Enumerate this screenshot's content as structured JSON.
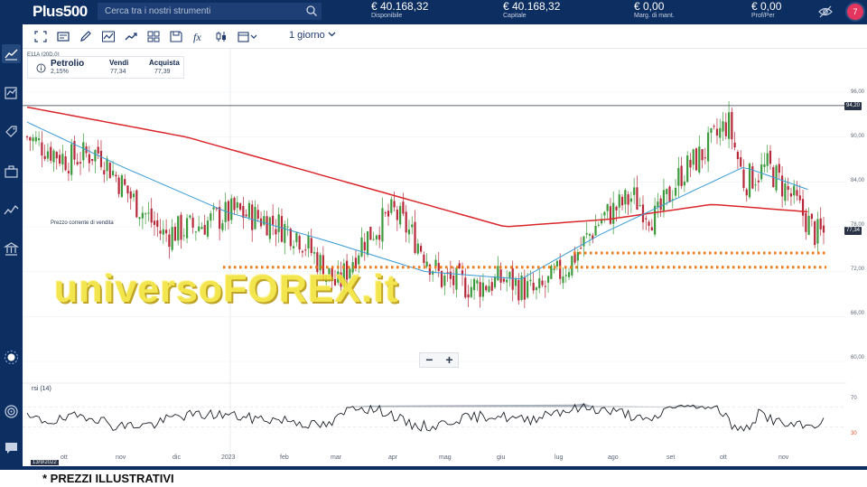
{
  "header": {
    "logo": "Plus500",
    "search_placeholder": "Cerca tra i nostri strumenti",
    "metrics": [
      {
        "value": "€ 40.168,32",
        "label": "Disponibile"
      },
      {
        "value": "€ 40.168,32",
        "label": "Capitale"
      },
      {
        "value": "€ 0,00",
        "label": "Marg. di mant."
      },
      {
        "value": "€ 0,00",
        "label": "Prof/Per"
      }
    ],
    "notification_count": "7"
  },
  "toolbar": {
    "timeframe": "1 giorno"
  },
  "instrument": {
    "name": "Petrolio",
    "change": "2,15%",
    "sell_label": "Vendi",
    "sell_price": "77,34",
    "buy_label": "Acquista",
    "buy_price": "77,39",
    "series_fragment": "E11A (20D,0)"
  },
  "chart": {
    "sell_price_note": "Prezzo corrente di vendita",
    "rsi_label": "rsi (14)",
    "price_axis": [
      "96,00",
      "90,00",
      "84,00",
      "78,00",
      "72,00",
      "66,00",
      "60,00"
    ],
    "rsi_axis": [
      "70",
      "30"
    ],
    "price_tags": {
      "top": "94,20",
      "current": "77,34"
    },
    "x_labels": [
      "ott",
      "nov",
      "dic",
      "2023",
      "feb",
      "mar",
      "apr",
      "mag",
      "giu",
      "lug",
      "ago",
      "set",
      "ott",
      "nov"
    ],
    "date_tag": "13/9/2022",
    "watermark": "universoFOREX.it",
    "zoom_out": "−",
    "zoom_in": "+"
  },
  "footer_note": "* PREZZI ILLUSTRATIVI",
  "colors": {
    "navy": "#0d2e60",
    "sma_red": "#d9262b",
    "sma_blue": "#3a9bd5",
    "candle_up": "#3c9a3c",
    "candle_down": "#b7283a",
    "dotted_line": "#f07a1a"
  },
  "chart_data": {
    "type": "candlestick",
    "instrument": "Petrolio",
    "timeframe": "1 giorno",
    "y_axis": {
      "min": 60,
      "max": 96,
      "ticks": [
        60,
        66,
        72,
        78,
        84,
        90,
        96
      ]
    },
    "x_labels": [
      "ott",
      "nov",
      "dic",
      "2023",
      "feb",
      "mar",
      "apr",
      "mag",
      "giu",
      "lug",
      "ago",
      "set",
      "ott",
      "nov"
    ],
    "close_path_approx": [
      [
        0,
        90
      ],
      [
        0.05,
        87
      ],
      [
        0.09,
        88
      ],
      [
        0.13,
        82
      ],
      [
        0.17,
        77
      ],
      [
        0.21,
        78
      ],
      [
        0.26,
        80
      ],
      [
        0.3,
        79
      ],
      [
        0.34,
        77
      ],
      [
        0.39,
        70
      ],
      [
        0.42,
        76
      ],
      [
        0.46,
        80
      ],
      [
        0.49,
        76
      ],
      [
        0.52,
        71
      ],
      [
        0.56,
        70
      ],
      [
        0.6,
        71
      ],
      [
        0.64,
        69
      ],
      [
        0.68,
        73
      ],
      [
        0.72,
        79
      ],
      [
        0.76,
        82
      ],
      [
        0.79,
        79
      ],
      [
        0.82,
        85
      ],
      [
        0.85,
        88
      ],
      [
        0.88,
        92
      ],
      [
        0.9,
        84
      ],
      [
        0.93,
        86
      ],
      [
        0.96,
        82
      ],
      [
        0.99,
        77
      ]
    ],
    "sma_slow_approx": [
      [
        0,
        94
      ],
      [
        0.2,
        90
      ],
      [
        0.4,
        84
      ],
      [
        0.6,
        78
      ],
      [
        0.73,
        79
      ],
      [
        0.86,
        81
      ],
      [
        0.98,
        80
      ]
    ],
    "sma_fast_approx": [
      [
        0,
        92
      ],
      [
        0.12,
        86
      ],
      [
        0.25,
        80
      ],
      [
        0.38,
        76
      ],
      [
        0.5,
        72
      ],
      [
        0.62,
        71
      ],
      [
        0.72,
        77
      ],
      [
        0.84,
        83
      ],
      [
        0.9,
        86
      ],
      [
        0.98,
        83
      ]
    ],
    "horizontal_lines": [
      94.2
    ],
    "dotted_levels": [
      74.5,
      72.6
    ],
    "current_price": 77.34,
    "rsi": {
      "period": 14,
      "levels": [
        30,
        70
      ]
    }
  }
}
